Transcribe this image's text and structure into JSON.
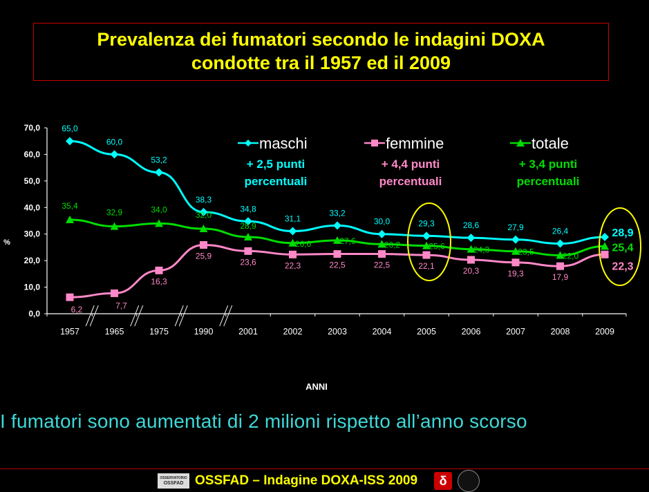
{
  "header": {
    "title_line1": "Prevalenza dei fumatori secondo le indagini DOXA",
    "title_line2": "condotte tra il 1957 ed il 2009"
  },
  "subtitle": "I fumatori sono aumentati di 2 milioni rispetto all’anno scorso",
  "footer": {
    "text": "OSSFAD – Indagine DOXA-ISS 2009",
    "logo_text": "OSSFAD"
  },
  "colors": {
    "maschi": "#00ffff",
    "femmine": "#ff88c8",
    "totale": "#00dd00",
    "highlight": "#ffff00",
    "axis": "#ffffff",
    "title": "#ffff00"
  },
  "chart_data": {
    "type": "line",
    "title": "Prevalenza dei fumatori secondo le indagini DOXA condotte tra il 1957 ed il 2009",
    "xlabel": "ANNI",
    "ylabel": "%",
    "ylim": [
      0,
      70
    ],
    "yticks": [
      "0,0",
      "10,0",
      "20,0",
      "30,0",
      "40,0",
      "50,0",
      "60,0",
      "70,0"
    ],
    "categories": [
      "1957",
      "1965",
      "1975",
      "1990",
      "2001",
      "2002",
      "2003",
      "2004",
      "2005",
      "2006",
      "2007",
      "2008",
      "2009"
    ],
    "series": [
      {
        "name": "maschi",
        "note_line1": "+ 2,5 punti",
        "note_line2": "percentuali",
        "values": [
          65.0,
          60.0,
          53.2,
          38.3,
          34.8,
          31.1,
          33.2,
          30.0,
          29.3,
          28.6,
          27.9,
          26.4,
          28.9
        ],
        "labels": [
          "65,0",
          "60,0",
          "53,2",
          "38,3",
          "34,8",
          "31,1",
          "33,2",
          "30,0",
          "29,3",
          "28,6",
          "27,9",
          "26,4",
          "28,9"
        ]
      },
      {
        "name": "femmine",
        "note_line1": "+ 4,4 punti",
        "note_line2": "percentuali",
        "values": [
          6.2,
          7.7,
          16.3,
          25.9,
          23.6,
          22.3,
          22.5,
          22.5,
          22.1,
          20.3,
          19.3,
          17.9,
          22.3
        ],
        "labels": [
          "6,2",
          "7,7",
          "16,3",
          "25,9",
          "23,6",
          "22,3",
          "22,5",
          "22,5",
          "22,1",
          "20,3",
          "19,3",
          "17,9",
          "22,3"
        ]
      },
      {
        "name": "totale",
        "note_line1": "+ 3,4 punti",
        "note_line2": "percentuali",
        "values": [
          35.4,
          32.9,
          34.0,
          32.0,
          28.9,
          26.6,
          27.6,
          26.2,
          25.6,
          24.3,
          23.5,
          22.0,
          25.4
        ],
        "labels": [
          "35,4",
          "32,9",
          "34,0",
          "32,0",
          "28,9",
          "26,6",
          "27,6",
          "26,2",
          "25,6",
          "24,3",
          "23,5",
          "22,0",
          "25,4"
        ]
      }
    ],
    "axis_breaks_after": [
      "1957",
      "1965",
      "1975",
      "1990"
    ],
    "highlighted_categories": [
      "2005",
      "2009"
    ],
    "legend_position": "top"
  }
}
